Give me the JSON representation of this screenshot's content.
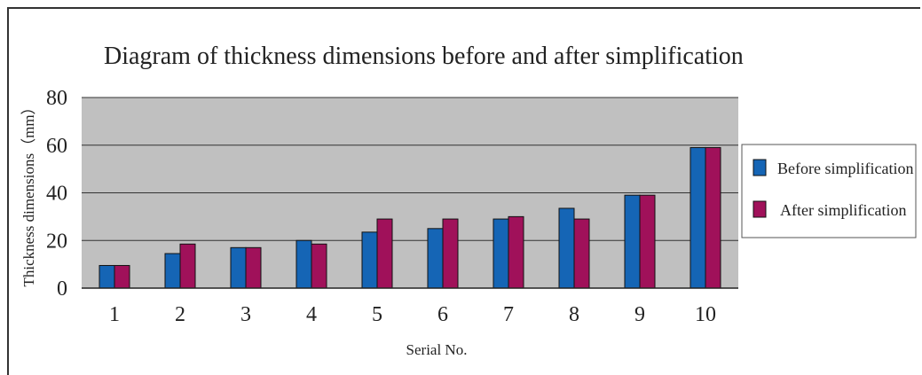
{
  "chart_data": {
    "type": "bar",
    "title": "Diagram of thickness dimensions before and after simplification",
    "xlabel": "Serial No.",
    "ylabel": "Thickness dimensions（mm）",
    "categories": [
      "1",
      "2",
      "3",
      "4",
      "5",
      "6",
      "7",
      "8",
      "9",
      "10"
    ],
    "ylim": [
      0,
      80
    ],
    "yticks": [
      "0",
      "20",
      "40",
      "60",
      "80"
    ],
    "grid": true,
    "legend_position": "right",
    "series": [
      {
        "name": "Before simplification",
        "color": "#1565b5",
        "values": [
          9.5,
          14.5,
          17,
          20,
          23.5,
          25,
          29,
          33.5,
          39,
          59
        ]
      },
      {
        "name": "After simplification",
        "color": "#a0115a",
        "values": [
          9.5,
          18.5,
          17,
          18.5,
          29,
          29,
          30,
          29,
          39,
          59
        ]
      }
    ],
    "plot_background": "#c0c0c0"
  }
}
